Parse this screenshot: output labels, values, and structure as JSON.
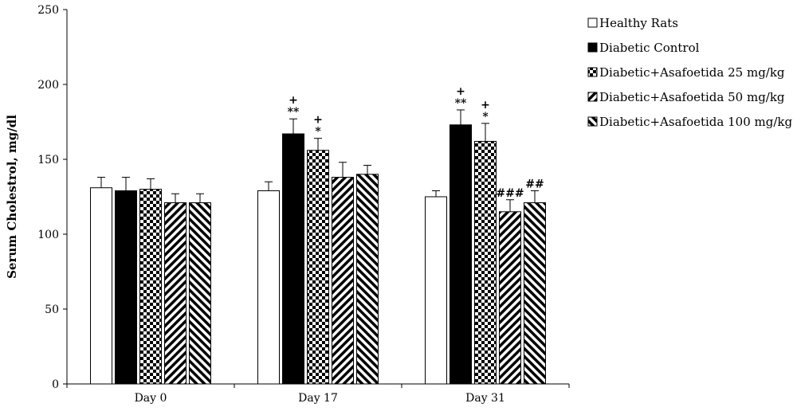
{
  "chart_data": {
    "type": "bar",
    "title": "",
    "xlabel": "",
    "ylabel": "Serum Cholestrol, mg/dl",
    "ylim": [
      0,
      250
    ],
    "yticks": [
      0,
      50,
      100,
      150,
      200,
      250
    ],
    "categories": [
      "Day 0",
      "Day 17",
      "Day 31"
    ],
    "legend_position": "top-right",
    "series": [
      {
        "name": "Healthy Rats",
        "pattern": "white",
        "values": [
          131,
          129,
          125
        ],
        "errors": [
          7,
          6,
          4
        ],
        "annotations": [
          "",
          "",
          ""
        ]
      },
      {
        "name": "Diabetic Control",
        "pattern": "black",
        "values": [
          129,
          167,
          173
        ],
        "errors": [
          9,
          10,
          10
        ],
        "annotations": [
          "",
          "+\n**",
          "+\n**"
        ]
      },
      {
        "name": "Diabetic+Asafoetida 25 mg/kg",
        "pattern": "checker",
        "values": [
          130,
          156,
          162
        ],
        "errors": [
          7,
          8,
          12
        ],
        "annotations": [
          "",
          "+\n*",
          "+\n*"
        ]
      },
      {
        "name": "Diabetic+Asafoetida 50 mg/kg",
        "pattern": "diag-fwd",
        "values": [
          121,
          138,
          115
        ],
        "errors": [
          6,
          10,
          8
        ],
        "annotations": [
          "",
          "",
          "###"
        ]
      },
      {
        "name": "Diabetic+Asafoetida 100 mg/kg",
        "pattern": "diag-back",
        "values": [
          121,
          140,
          121
        ],
        "errors": [
          6,
          6,
          8
        ],
        "annotations": [
          "",
          "",
          "##"
        ]
      }
    ]
  }
}
